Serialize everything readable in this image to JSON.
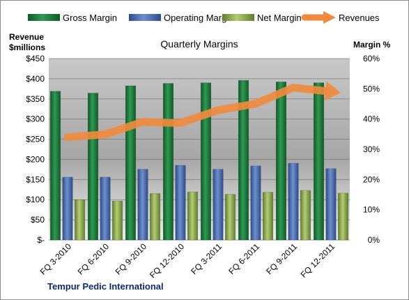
{
  "chart_data": {
    "type": "bar",
    "title": "Quarterly Margins",
    "subtitle": "Tempur Pedic International",
    "categories": [
      "FQ 3-2010",
      "FQ 6-2010",
      "FQ 9-2010",
      "FQ 12-2010",
      "FQ 3-2011",
      "FQ 6-2011",
      "FQ 9-2011",
      "FQ 12-2011"
    ],
    "y_left": {
      "label_line1": "Revenue",
      "label_line2": "$millions",
      "range": [
        0,
        450
      ],
      "ticks": [
        0,
        50,
        100,
        150,
        200,
        250,
        300,
        350,
        400,
        450
      ],
      "tick_labels": [
        "$-",
        "$50",
        "$100",
        "$150",
        "$200",
        "$250",
        "$300",
        "$350",
        "$400",
        "$450"
      ]
    },
    "y_right": {
      "label": "Margin %",
      "range": [
        0,
        60
      ],
      "ticks": [
        0,
        10,
        20,
        30,
        40,
        50,
        60
      ],
      "tick_labels": [
        "0%",
        "10%",
        "20%",
        "30%",
        "40%",
        "50%",
        "60%"
      ]
    },
    "series": [
      {
        "name": "Gross Margin",
        "type": "bar",
        "axis": "right",
        "color": "#1e7a3e",
        "values": [
          49.2,
          48.6,
          51.0,
          51.8,
          52.0,
          52.8,
          52.3,
          52.0
        ]
      },
      {
        "name": "Operating Margin",
        "type": "bar",
        "axis": "right",
        "color": "#4a6fb0",
        "values": [
          20.8,
          20.8,
          23.4,
          24.7,
          23.4,
          24.5,
          25.4,
          23.6
        ]
      },
      {
        "name": "Net Margin",
        "type": "bar",
        "axis": "right",
        "color": "#8fae4c",
        "values": [
          13.3,
          12.9,
          15.4,
          15.9,
          15.1,
          15.8,
          16.4,
          15.5
        ]
      },
      {
        "name": "Revenues",
        "type": "line",
        "axis": "left",
        "color": "#f08a3c",
        "values": [
          255,
          262,
          293,
          290,
          322,
          338,
          378,
          368
        ]
      }
    ],
    "legend_position": "top",
    "grid": true
  }
}
